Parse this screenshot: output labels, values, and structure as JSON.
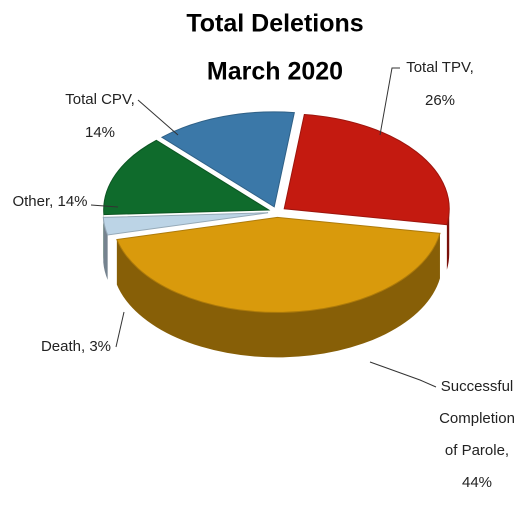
{
  "chart_data": {
    "type": "pie",
    "title": [
      "Total Deletions",
      "March 2020"
    ],
    "values": [
      26,
      44,
      3,
      14,
      14
    ],
    "value_labels": [
      [
        "Total TPV,",
        "26%"
      ],
      [
        "Successful",
        "Completion",
        "of Parole,",
        "44%"
      ],
      [
        "Death, 3%"
      ],
      [
        "Other, 14%"
      ],
      [
        "Total CPV,",
        "14%"
      ]
    ],
    "colors": [
      "#c41a10",
      "#d99a0c",
      "#bcd4e6",
      "#0f6b2c",
      "#3b78a8"
    ],
    "three_d": true
  }
}
